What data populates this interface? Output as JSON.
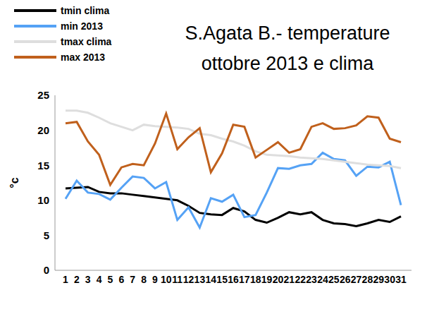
{
  "chart_data": {
    "type": "line",
    "title": "S.Agata B.- temperature\nottobre 2013  e clima",
    "y_label": "°c",
    "categories": [
      "1",
      "2",
      "3",
      "4",
      "5",
      "6",
      "7",
      "8",
      "9",
      "10",
      "11",
      "12",
      "13",
      "14",
      "15",
      "16",
      "17",
      "18",
      "19",
      "20",
      "21",
      "22",
      "23",
      "24",
      "25",
      "26",
      "27",
      "28",
      "29",
      "30",
      "31"
    ],
    "series": [
      {
        "name": "tmin clima",
        "color": "#000000",
        "values": [
          11.7,
          11.8,
          11.9,
          11.2,
          11.0,
          11.0,
          10.8,
          10.6,
          10.4,
          10.2,
          10.0,
          9.2,
          8.2,
          8.0,
          7.9,
          8.9,
          8.4,
          7.2,
          6.8,
          7.5,
          8.3,
          8.0,
          8.3,
          7.2,
          6.7,
          6.6,
          6.3,
          6.7,
          7.2,
          6.9,
          7.7
        ]
      },
      {
        "name": "min 2013",
        "color": "#55a2f5",
        "values": [
          10.2,
          12.8,
          11.1,
          10.9,
          10.1,
          11.8,
          13.4,
          13.2,
          11.7,
          12.6,
          7.2,
          9.0,
          6.1,
          10.3,
          9.8,
          10.8,
          7.6,
          7.9,
          11.1,
          14.6,
          14.5,
          15.0,
          15.2,
          16.8,
          15.9,
          15.7,
          13.5,
          14.8,
          14.7,
          15.5,
          9.3
        ]
      },
      {
        "name": "tmax clima",
        "color": "#dedede",
        "values": [
          22.8,
          22.8,
          22.5,
          21.8,
          21.0,
          20.5,
          20.0,
          20.8,
          20.6,
          20.5,
          20.4,
          20.2,
          19.5,
          19.3,
          18.8,
          18.4,
          17.8,
          17.0,
          16.5,
          16.4,
          16.3,
          16.1,
          16.0,
          15.9,
          15.7,
          15.5,
          15.3,
          15.1,
          15.0,
          14.9,
          14.6
        ]
      },
      {
        "name": "max 2013",
        "color": "#c0601c",
        "values": [
          21.0,
          21.2,
          18.4,
          16.5,
          12.2,
          14.7,
          15.2,
          15.0,
          18.1,
          22.4,
          17.3,
          19.0,
          20.3,
          14.0,
          16.7,
          20.8,
          20.5,
          16.1,
          17.2,
          18.3,
          16.8,
          17.3,
          20.5,
          21.0,
          20.2,
          20.3,
          20.7,
          22.0,
          21.8,
          18.8,
          18.3
        ]
      }
    ],
    "ylim": [
      0,
      25
    ],
    "yticks": [
      0,
      5,
      10,
      15,
      20,
      25
    ],
    "grid": false,
    "legend": "top-left"
  }
}
